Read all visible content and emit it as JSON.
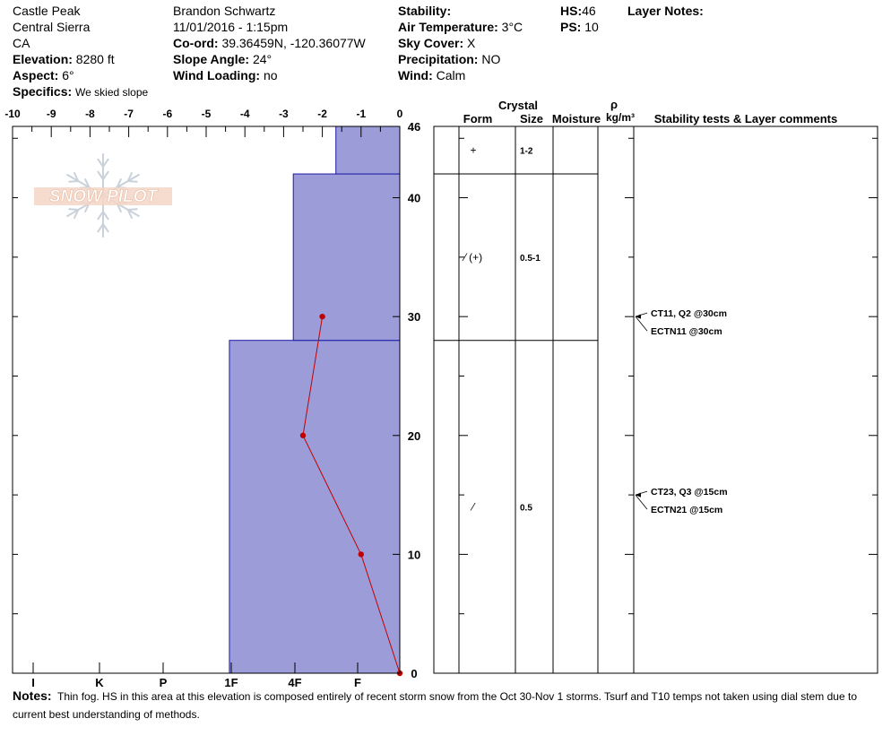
{
  "header": {
    "location": "Castle Peak",
    "range": "Central Sierra",
    "state": "CA",
    "elevation_label": "Elevation:",
    "elevation_value": "8280 ft",
    "aspect_label": "Aspect:",
    "aspect_value": "6°",
    "specifics_label": "Specifics:",
    "specifics_value": "We skied slope",
    "observer": "Brandon Schwartz",
    "datetime": "11/01/2016 - 1:15pm",
    "coord_label": "Co-ord:",
    "coord_value": "39.36459N, -120.36077W",
    "slope_label": "Slope Angle:",
    "slope_value": "24°",
    "wind_loading_label": "Wind Loading:",
    "wind_loading_value": "no",
    "stability_label": "Stability:",
    "air_temp_label": "Air Temperature:",
    "air_temp_value": "3°C",
    "sky_label": "Sky Cover:",
    "sky_value": "X",
    "precip_label": "Precipitation:",
    "precip_value": "NO",
    "wind_label": "Wind:",
    "wind_value": "Calm",
    "hs_label": "HS:",
    "hs_value": "46",
    "ps_label": "PS:",
    "ps_value": "10",
    "layer_notes_label": "Layer Notes:"
  },
  "logo_text": "SNOW PILOT",
  "notes": {
    "label": "Notes:",
    "text": "Thin fog. HS in this area at this elevation is composed entirely of recent storm snow from the Oct 30-Nov 1 storms. Tsurf and T10 temps not taken using dial stem due to current best understanding of methods."
  },
  "columns": {
    "crystal": "Crystal",
    "form": "Form",
    "size": "Size",
    "moisture": "Moisture",
    "rho": "ρ",
    "density_unit": "kg/m³",
    "stability": "Stability tests & Layer comments"
  },
  "chart_data": {
    "type": "area",
    "x_axis_temperature": {
      "ticks": [
        "-10",
        "-9",
        "-8",
        "-7",
        "-6",
        "-5",
        "-4",
        "-3",
        "-2",
        "-1",
        "0"
      ],
      "range": [
        -10,
        0
      ]
    },
    "x_axis_hardness": {
      "ticks": [
        "I",
        "K",
        "P",
        "1F",
        "4F",
        "F"
      ]
    },
    "y_axis": {
      "ticks": [
        "0",
        "10",
        "20",
        "30",
        "40",
        "46"
      ],
      "range": [
        0,
        46
      ]
    },
    "hardness_layers": [
      {
        "bottom": 0,
        "top": 28,
        "hardness_x": -4.4
      },
      {
        "bottom": 28,
        "top": 42,
        "hardness_x": -2.75
      },
      {
        "bottom": 42,
        "top": 46,
        "hardness_x": -1.65
      }
    ],
    "temperature_profile": [
      {
        "height": 0,
        "temp": 0
      },
      {
        "height": 10,
        "temp": -1
      },
      {
        "height": 20,
        "temp": -2.5
      },
      {
        "height": 30,
        "temp": -2
      }
    ],
    "layer_lines": [
      28,
      42,
      46
    ],
    "crystal_layers": [
      {
        "height": 44,
        "form": "+",
        "size": "1-2"
      },
      {
        "height": 35,
        "form": "⁄ (+)",
        "size": "0.5-1"
      },
      {
        "height": 14,
        "form": "⁄",
        "size": "0.5"
      }
    ],
    "stability_tests": [
      {
        "height": 30,
        "text": "CT11, Q2 @30cm",
        "offset": 0
      },
      {
        "height": 30,
        "text": "ECTN11 @30cm",
        "offset": 1
      },
      {
        "height": 15,
        "text": "CT23, Q3 @15cm",
        "offset": 0
      },
      {
        "height": 15,
        "text": "ECTN21 @15cm",
        "offset": 1
      }
    ],
    "colors": {
      "layer_fill": "#9c9cd8",
      "layer_stroke": "#1a1aa6",
      "temp_line": "#c00000"
    }
  }
}
